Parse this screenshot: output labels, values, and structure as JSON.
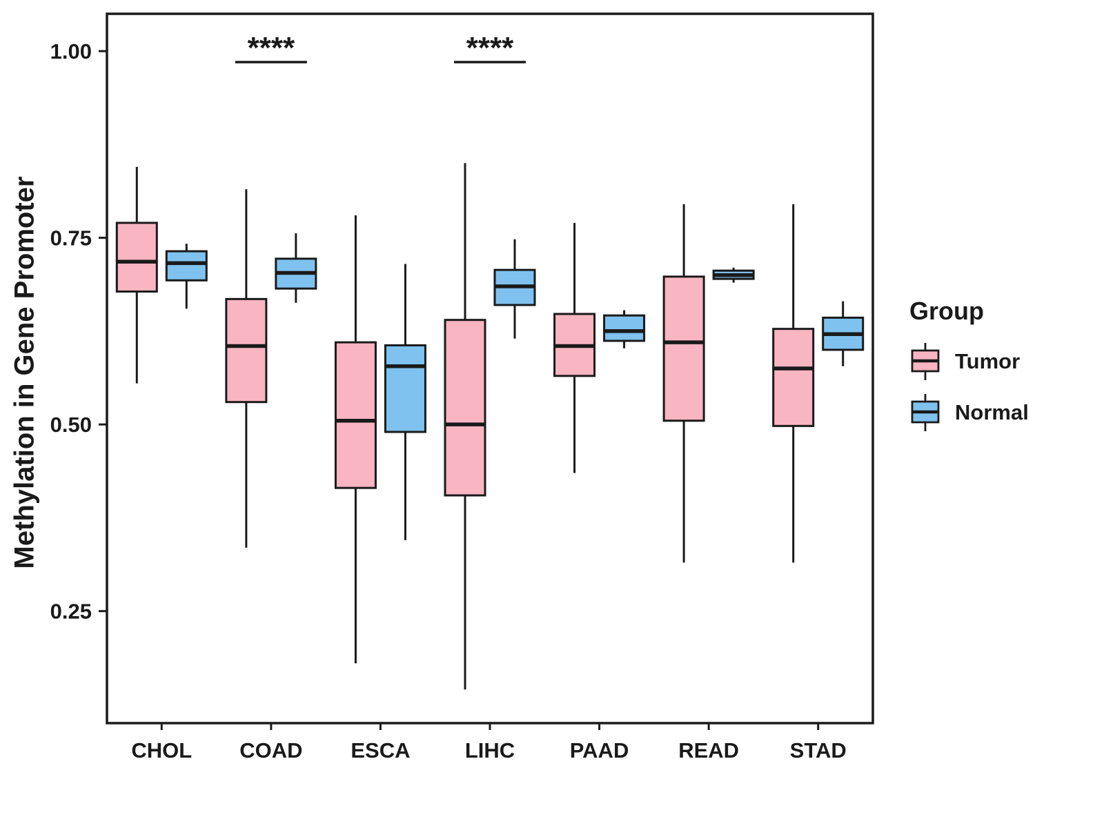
{
  "figure": {
    "background": "#FFFFFF",
    "stroke_color": "#1A1A1A"
  },
  "chart_data": {
    "type": "boxplot",
    "title": "",
    "xlabel": "",
    "ylabel": "Methylation in Gene Promoter",
    "ylim": [
      0.1,
      1.05
    ],
    "yticks": [
      0.25,
      0.5,
      0.75,
      1.0
    ],
    "ytick_labels": [
      "0.25",
      "0.50",
      "0.75",
      "1.00"
    ],
    "grid": "off",
    "categories": [
      "CHOL",
      "COAD",
      "ESCA",
      "LIHC",
      "PAAD",
      "READ",
      "STAD"
    ],
    "groups": [
      {
        "name": "Tumor",
        "color": "#F9B5C2",
        "boxes": [
          {
            "low": 0.555,
            "q1": 0.678,
            "median": 0.718,
            "q3": 0.77,
            "high": 0.845
          },
          {
            "low": 0.335,
            "q1": 0.53,
            "median": 0.605,
            "q3": 0.668,
            "high": 0.815
          },
          {
            "low": 0.18,
            "q1": 0.415,
            "median": 0.505,
            "q3": 0.61,
            "high": 0.78
          },
          {
            "low": 0.145,
            "q1": 0.405,
            "median": 0.5,
            "q3": 0.64,
            "high": 0.85
          },
          {
            "low": 0.435,
            "q1": 0.565,
            "median": 0.605,
            "q3": 0.648,
            "high": 0.77
          },
          {
            "low": 0.315,
            "q1": 0.505,
            "median": 0.61,
            "q3": 0.698,
            "high": 0.795
          },
          {
            "low": 0.315,
            "q1": 0.498,
            "median": 0.575,
            "q3": 0.628,
            "high": 0.795
          }
        ]
      },
      {
        "name": "Normal",
        "color": "#7FC2EF",
        "boxes": [
          {
            "low": 0.655,
            "q1": 0.693,
            "median": 0.716,
            "q3": 0.732,
            "high": 0.742
          },
          {
            "low": 0.663,
            "q1": 0.682,
            "median": 0.703,
            "q3": 0.722,
            "high": 0.756
          },
          {
            "low": 0.345,
            "q1": 0.49,
            "median": 0.578,
            "q3": 0.606,
            "high": 0.715
          },
          {
            "low": 0.615,
            "q1": 0.66,
            "median": 0.685,
            "q3": 0.707,
            "high": 0.748
          },
          {
            "low": 0.602,
            "q1": 0.612,
            "median": 0.625,
            "q3": 0.646,
            "high": 0.653
          },
          {
            "low": 0.69,
            "q1": 0.695,
            "median": 0.7,
            "q3": 0.706,
            "high": 0.71
          },
          {
            "low": 0.578,
            "q1": 0.6,
            "median": 0.621,
            "q3": 0.643,
            "high": 0.665
          }
        ]
      }
    ],
    "annotations": [
      {
        "category": "COAD",
        "label": "****"
      },
      {
        "category": "LIHC",
        "label": "****"
      }
    ],
    "legend": {
      "title": "Group",
      "position": "right",
      "entries": [
        "Tumor",
        "Normal"
      ]
    }
  }
}
